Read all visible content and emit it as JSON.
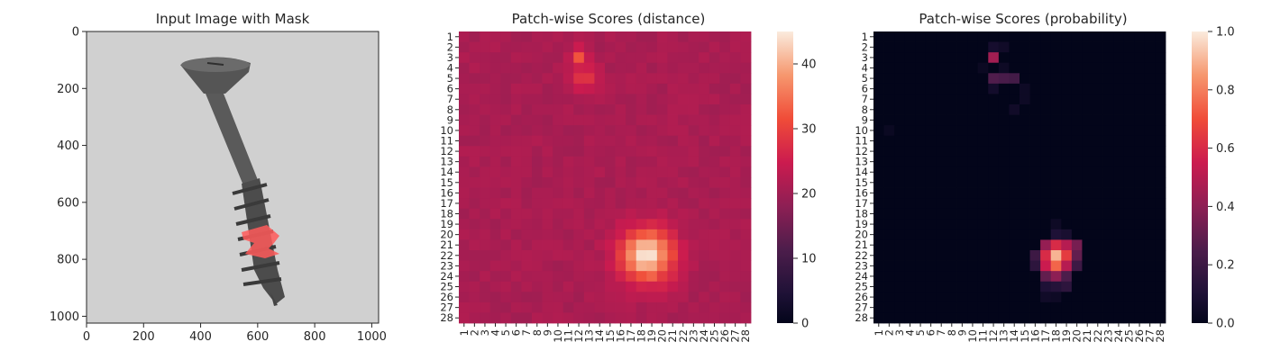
{
  "chart_data": [
    {
      "type": "image",
      "title": "Input Image with Mask",
      "xlabel": "",
      "ylabel": "",
      "xlim": [
        0,
        1024
      ],
      "ylim": [
        1024,
        0
      ],
      "xticks": [
        0,
        200,
        400,
        600,
        800,
        1000
      ],
      "yticks": [
        0,
        200,
        400,
        600,
        800,
        1000
      ],
      "image": {
        "background_color": "#d0d0d0",
        "object": "screw",
        "object_color": "#4a4a4a",
        "mask_color": "#ff5a5a",
        "mask_region": {
          "x": [
            545,
            630
          ],
          "y": [
            690,
            810
          ]
        }
      }
    },
    {
      "type": "heatmap",
      "title": "Patch-wise Scores (distance)",
      "xlabel": "",
      "ylabel": "",
      "rows": 28,
      "cols": 28,
      "xticklabels": [
        "1",
        "2",
        "3",
        "4",
        "5",
        "6",
        "7",
        "8",
        "9",
        "10",
        "11",
        "12",
        "13",
        "14",
        "15",
        "16",
        "17",
        "18",
        "19",
        "20",
        "21",
        "22",
        "23",
        "24",
        "25",
        "26",
        "27",
        "28"
      ],
      "yticklabels": [
        "1",
        "2",
        "3",
        "4",
        "5",
        "6",
        "7",
        "8",
        "9",
        "10",
        "11",
        "12",
        "13",
        "14",
        "15",
        "16",
        "17",
        "18",
        "19",
        "20",
        "21",
        "22",
        "23",
        "24",
        "25",
        "26",
        "27",
        "28"
      ],
      "colorbar": {
        "min": 0,
        "max": 45,
        "ticks": [
          0,
          10,
          20,
          30,
          40
        ]
      },
      "colormap": "rocket",
      "baseline": 22,
      "hotspots": [
        {
          "row": 22,
          "col": 18.5,
          "peak": 45,
          "spread": 1.8
        },
        {
          "row": 3,
          "col": 12,
          "peak": 33,
          "spread": 0.6
        },
        {
          "row": 5,
          "col": 12.5,
          "peak": 31,
          "spread": 0.9
        }
      ]
    },
    {
      "type": "heatmap",
      "title": "Patch-wise Scores (probability)",
      "xlabel": "",
      "ylabel": "",
      "rows": 28,
      "cols": 28,
      "xticklabels": [
        "1",
        "2",
        "3",
        "4",
        "5",
        "6",
        "7",
        "8",
        "9",
        "10",
        "11",
        "12",
        "13",
        "14",
        "15",
        "16",
        "17",
        "18",
        "19",
        "20",
        "21",
        "22",
        "23",
        "24",
        "25",
        "26",
        "27",
        "28"
      ],
      "yticklabels": [
        "1",
        "2",
        "3",
        "4",
        "5",
        "6",
        "7",
        "8",
        "9",
        "10",
        "11",
        "12",
        "13",
        "14",
        "15",
        "16",
        "17",
        "18",
        "19",
        "20",
        "21",
        "22",
        "23",
        "24",
        "25",
        "26",
        "27",
        "28"
      ],
      "colorbar": {
        "min": 0.0,
        "max": 1.0,
        "ticks": [
          "0.0",
          "0.2",
          "0.4",
          "0.6",
          "0.8",
          "1.0"
        ]
      },
      "colormap": "rocket",
      "cells": [
        {
          "row": 3,
          "col": 12,
          "value": 0.45
        },
        {
          "row": 2,
          "col": 12,
          "value": 0.07
        },
        {
          "row": 2,
          "col": 13,
          "value": 0.05
        },
        {
          "row": 4,
          "col": 11,
          "value": 0.03
        },
        {
          "row": 4,
          "col": 13,
          "value": 0.04
        },
        {
          "row": 5,
          "col": 12,
          "value": 0.26
        },
        {
          "row": 5,
          "col": 13,
          "value": 0.24
        },
        {
          "row": 5,
          "col": 14,
          "value": 0.22
        },
        {
          "row": 6,
          "col": 12,
          "value": 0.06
        },
        {
          "row": 6,
          "col": 15,
          "value": 0.04
        },
        {
          "row": 7,
          "col": 15,
          "value": 0.04
        },
        {
          "row": 8,
          "col": 14,
          "value": 0.05
        },
        {
          "row": 10,
          "col": 2,
          "value": 0.03
        },
        {
          "row": 19,
          "col": 18,
          "value": 0.04
        },
        {
          "row": 20,
          "col": 18,
          "value": 0.1
        },
        {
          "row": 20,
          "col": 19,
          "value": 0.08
        },
        {
          "row": 21,
          "col": 17,
          "value": 0.42
        },
        {
          "row": 21,
          "col": 18,
          "value": 0.6
        },
        {
          "row": 21,
          "col": 19,
          "value": 0.5
        },
        {
          "row": 21,
          "col": 20,
          "value": 0.35
        },
        {
          "row": 22,
          "col": 16,
          "value": 0.2
        },
        {
          "row": 22,
          "col": 17,
          "value": 0.6
        },
        {
          "row": 22,
          "col": 18,
          "value": 0.9
        },
        {
          "row": 22,
          "col": 19,
          "value": 0.65
        },
        {
          "row": 22,
          "col": 20,
          "value": 0.3
        },
        {
          "row": 23,
          "col": 16,
          "value": 0.15
        },
        {
          "row": 23,
          "col": 17,
          "value": 0.55
        },
        {
          "row": 23,
          "col": 18,
          "value": 0.75
        },
        {
          "row": 23,
          "col": 19,
          "value": 0.5
        },
        {
          "row": 23,
          "col": 20,
          "value": 0.2
        },
        {
          "row": 24,
          "col": 17,
          "value": 0.3
        },
        {
          "row": 24,
          "col": 18,
          "value": 0.4
        },
        {
          "row": 24,
          "col": 19,
          "value": 0.25
        },
        {
          "row": 25,
          "col": 17,
          "value": 0.1
        },
        {
          "row": 25,
          "col": 18,
          "value": 0.12
        },
        {
          "row": 25,
          "col": 19,
          "value": 0.15
        },
        {
          "row": 26,
          "col": 17,
          "value": 0.05
        },
        {
          "row": 26,
          "col": 18,
          "value": 0.04
        }
      ]
    }
  ]
}
